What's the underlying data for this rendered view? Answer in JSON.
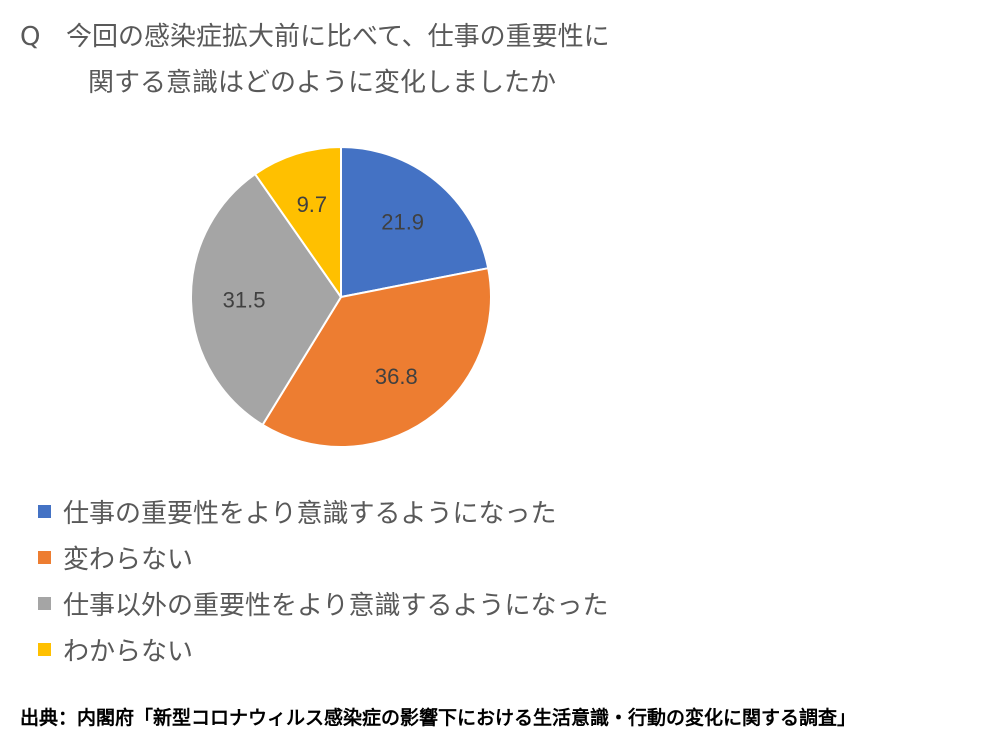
{
  "question": {
    "marker": "Q",
    "line1": "今回の感染症拡大前に比べて、仕事の重要性に",
    "line2": "関する意識はどのように変化しましたか"
  },
  "chart_data": {
    "type": "pie",
    "categories": [
      "仕事の重要性をより意識するようになった",
      "変わらない",
      "仕事以外の重要性をより意識するようになった",
      "わからない"
    ],
    "values": [
      21.9,
      36.8,
      31.5,
      9.7
    ],
    "data_labels": [
      "21.9",
      "36.8",
      "31.5",
      "9.7"
    ],
    "colors": [
      "#4472C4",
      "#ED7D31",
      "#A5A5A5",
      "#FFC000"
    ],
    "start_angle_deg": 0,
    "direction": "clockwise",
    "legend_position": "bottom-left",
    "label_color": "#404040"
  },
  "legend": {
    "items": [
      {
        "label": "仕事の重要性をより意識するようになった",
        "color": "#4472C4"
      },
      {
        "label": "変わらない",
        "color": "#ED7D31"
      },
      {
        "label": "仕事以外の重要性をより意識するようになった",
        "color": "#A5A5A5"
      },
      {
        "label": "わからない",
        "color": "#FFC000"
      }
    ]
  },
  "source": {
    "text": "出典：内閣府「新型コロナウィルス感染症の影響下における生活意識・行動の変化に関する調査」"
  }
}
